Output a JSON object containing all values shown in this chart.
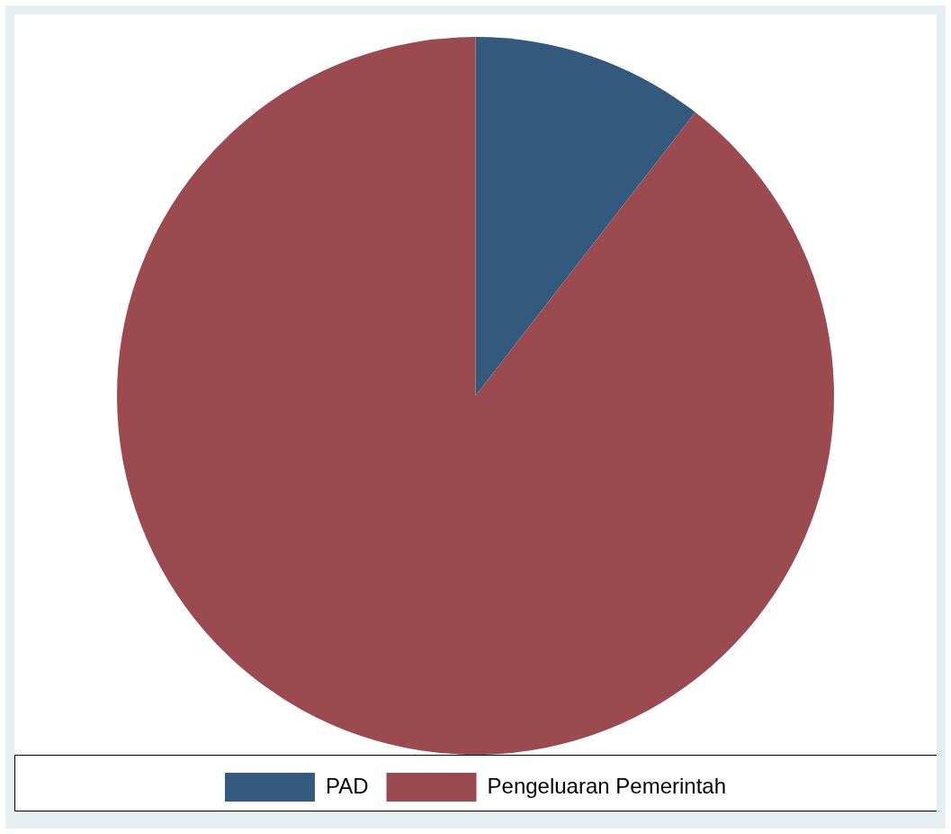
{
  "chart_data": {
    "type": "pie",
    "categories": [
      "PAD",
      "Pengeluaran Pemerintah"
    ],
    "values": [
      10.5,
      89.5
    ],
    "colors": [
      "#335a7d",
      "#9b4a50"
    ],
    "legend": "bottom"
  }
}
